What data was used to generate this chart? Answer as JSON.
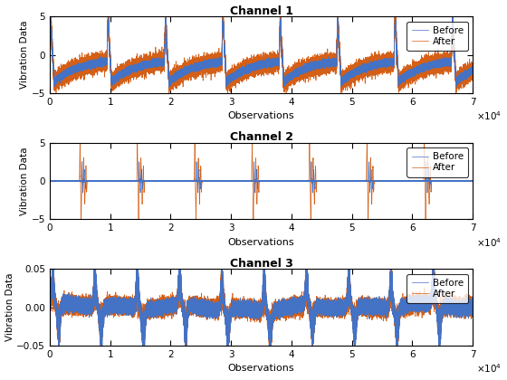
{
  "title1": "Channel 1",
  "title2": "Channel 2",
  "title3": "Channel 3",
  "xlabel": "Observations",
  "ylabel": "Vibration Data",
  "legend_before": "Before",
  "legend_after": "After",
  "color_before": "#4472C4",
  "color_after": "#D45F17",
  "n_points": 70000,
  "xlim": [
    0,
    70000
  ],
  "ylim1": [
    -5,
    5
  ],
  "ylim2": [
    -5,
    5
  ],
  "ylim3": [
    -0.05,
    0.05
  ],
  "yticks1": [
    -5,
    0,
    5
  ],
  "yticks2": [
    -5,
    0,
    5
  ],
  "yticks3": [
    -0.05,
    0,
    0.05
  ],
  "xticks": [
    0,
    10000,
    20000,
    30000,
    40000,
    50000,
    60000,
    70000
  ],
  "xtick_labels": [
    "0",
    "1",
    "2",
    "3",
    "4",
    "5",
    "6",
    "7"
  ]
}
